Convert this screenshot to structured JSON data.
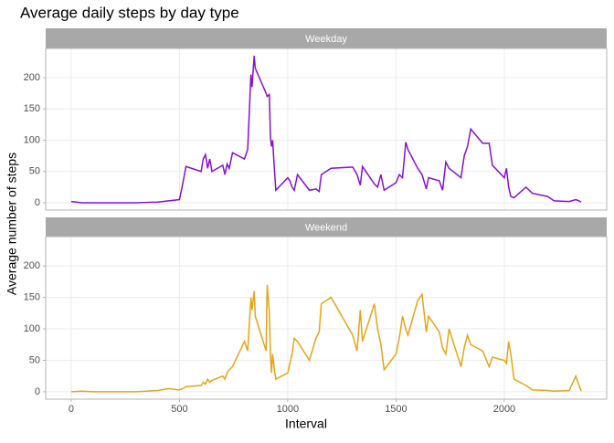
{
  "chart_data": {
    "type": "line",
    "title": "Average daily steps by day type",
    "x_label": "Interval",
    "y_label": "Average number of steps",
    "x": [
      0,
      50,
      100,
      200,
      300,
      400,
      450,
      500,
      515,
      530,
      600,
      610,
      620,
      630,
      640,
      650,
      700,
      710,
      720,
      730,
      745,
      800,
      815,
      830,
      835,
      845,
      850,
      900,
      905,
      915,
      920,
      925,
      930,
      940,
      945,
      1000,
      1010,
      1020,
      1030,
      1045,
      1100,
      1130,
      1145,
      1155,
      1200,
      1300,
      1320,
      1335,
      1345,
      1400,
      1415,
      1430,
      1445,
      1500,
      1515,
      1530,
      1545,
      1555,
      1600,
      1620,
      1640,
      1650,
      1700,
      1715,
      1730,
      1745,
      1800,
      1815,
      1830,
      1845,
      1900,
      1930,
      1945,
      2000,
      2010,
      2020,
      2030,
      2045,
      2100,
      2130,
      2200,
      2230,
      2300,
      2330,
      2345,
      2355
    ],
    "series": [
      {
        "name": "Weekday",
        "color": "#8a0fd0",
        "values": [
          2,
          0,
          0,
          0,
          0,
          1,
          3,
          5,
          30,
          58,
          50,
          70,
          77,
          55,
          70,
          50,
          60,
          45,
          62,
          55,
          80,
          70,
          85,
          205,
          185,
          235,
          215,
          175,
          170,
          173,
          105,
          90,
          100,
          45,
          20,
          40,
          35,
          25,
          20,
          45,
          20,
          22,
          18,
          45,
          55,
          57,
          45,
          28,
          58,
          30,
          25,
          45,
          20,
          32,
          45,
          40,
          97,
          85,
          55,
          45,
          22,
          40,
          35,
          20,
          65,
          55,
          40,
          75,
          90,
          118,
          95,
          95,
          60,
          40,
          55,
          25,
          10,
          8,
          25,
          15,
          10,
          3,
          2,
          5,
          3,
          1
        ]
      },
      {
        "name": "Weekend",
        "color": "#e8a317",
        "values": [
          0,
          1,
          0,
          0,
          0,
          2,
          5,
          3,
          5,
          8,
          10,
          15,
          12,
          20,
          15,
          18,
          25,
          20,
          30,
          35,
          40,
          80,
          65,
          150,
          130,
          160,
          120,
          65,
          170,
          125,
          60,
          30,
          60,
          30,
          20,
          30,
          45,
          60,
          85,
          80,
          50,
          85,
          95,
          140,
          150,
          90,
          65,
          130,
          80,
          140,
          100,
          75,
          35,
          60,
          85,
          120,
          100,
          90,
          145,
          155,
          95,
          120,
          95,
          70,
          60,
          100,
          40,
          70,
          90,
          75,
          65,
          40,
          55,
          50,
          45,
          80,
          60,
          20,
          10,
          3,
          2,
          1,
          2,
          25,
          10,
          1
        ]
      }
    ],
    "xlim": [
      -117.75,
      2472.75
    ],
    "xticks": [
      0,
      500,
      1000,
      1500,
      2000
    ],
    "ylim": [
      -11.75,
      246.75
    ],
    "yticks": [
      0,
      50,
      100,
      150,
      200
    ],
    "grid": true
  }
}
